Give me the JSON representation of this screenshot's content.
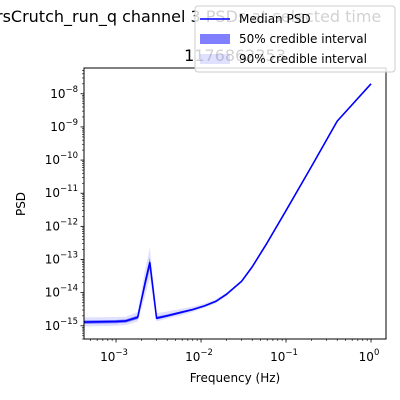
{
  "chart_data": {
    "type": "line",
    "title": "rsCrutch_run_q channel 3 PSDs at selected time",
    "subtitle": "1176862353",
    "xlabel": "Frequency (Hz)",
    "ylabel": "PSD",
    "xscale": "log",
    "yscale": "log",
    "xlim": [
      0.00042,
      1.5
    ],
    "ylim": [
      4e-16,
      6e-08
    ],
    "x_ticks": [
      {
        "value": 0.001,
        "base": "10",
        "exp": "−3"
      },
      {
        "value": 0.01,
        "base": "10",
        "exp": "−2"
      },
      {
        "value": 0.1,
        "base": "10",
        "exp": "−1"
      },
      {
        "value": 1,
        "base": "10",
        "exp": "0"
      }
    ],
    "y_ticks": [
      {
        "value": 1e-15,
        "base": "10",
        "exp": "−15"
      },
      {
        "value": 1e-14,
        "base": "10",
        "exp": "−14"
      },
      {
        "value": 1e-13,
        "base": "10",
        "exp": "−13"
      },
      {
        "value": 1e-12,
        "base": "10",
        "exp": "−12"
      },
      {
        "value": 1e-11,
        "base": "10",
        "exp": "−11"
      },
      {
        "value": 1e-10,
        "base": "10",
        "exp": "−10"
      },
      {
        "value": 1e-09,
        "base": "10",
        "exp": "−9"
      },
      {
        "value": 1e-08,
        "base": "10",
        "exp": "−8"
      }
    ],
    "grid": false,
    "legend": {
      "position": "upper-right",
      "entries": [
        {
          "label": "Median PSD",
          "kind": "line",
          "color": "#0000ff"
        },
        {
          "label": "50% credible interval",
          "kind": "band",
          "color": "#0000ff",
          "alpha": 0.5
        },
        {
          "label": "90% credible interval",
          "kind": "band",
          "color": "#0000ff",
          "alpha": 0.12
        }
      ]
    },
    "series": [
      {
        "name": "Median PSD",
        "x": [
          0.00042,
          0.001,
          0.0013,
          0.0018,
          0.0022,
          0.0025,
          0.003,
          0.004,
          0.006,
          0.008,
          0.011,
          0.015,
          0.02,
          0.03,
          0.04,
          0.06,
          0.1,
          0.2,
          0.4,
          1.0
        ],
        "y": [
          1.3e-15,
          1.35e-15,
          1.4e-15,
          1.8e-15,
          2e-14,
          8e-14,
          1.7e-15,
          2e-15,
          2.6e-15,
          3.1e-15,
          4e-15,
          5.5e-15,
          9e-15,
          2.2e-14,
          6e-14,
          3.2e-13,
          3e-12,
          6.5e-11,
          1.5e-09,
          2e-08
        ]
      },
      {
        "name": "50% credible interval",
        "x": [
          0.00042,
          0.001,
          0.0013,
          0.0018,
          0.0022,
          0.0025,
          0.003,
          0.004,
          0.006,
          0.008,
          0.011,
          0.015,
          0.02,
          0.03,
          0.04,
          0.06,
          0.1,
          0.2,
          0.4,
          1.0
        ],
        "low": [
          1.15e-15,
          1.2e-15,
          1.25e-15,
          1.6e-15,
          1.4e-14,
          5.5e-14,
          1.55e-15,
          1.85e-15,
          2.4e-15,
          2.9e-15,
          3.8e-15,
          5.2e-15,
          8.5e-15,
          2.1e-14,
          5.7e-14,
          3e-13,
          2.9e-12,
          6.3e-11,
          1.45e-09,
          1.95e-08
        ],
        "high": [
          1.45e-15,
          1.5e-15,
          1.55e-15,
          2.05e-15,
          2.7e-14,
          1.1e-13,
          1.9e-15,
          2.2e-15,
          2.8e-15,
          3.3e-15,
          4.2e-15,
          5.8e-15,
          9.5e-15,
          2.3e-14,
          6.3e-14,
          3.4e-13,
          3.1e-12,
          6.7e-11,
          1.55e-09,
          2.05e-08
        ]
      },
      {
        "name": "90% credible interval",
        "x": [
          0.00042,
          0.001,
          0.0013,
          0.0018,
          0.0022,
          0.0025,
          0.003,
          0.004,
          0.006,
          0.008,
          0.011,
          0.015,
          0.02,
          0.03,
          0.04,
          0.06,
          0.1,
          0.2,
          0.4,
          1.0
        ],
        "low": [
          9.5e-16,
          1e-15,
          1.05e-15,
          1.35e-15,
          8e-15,
          2.8e-14,
          1.35e-15,
          1.65e-15,
          2.1e-15,
          2.6e-15,
          3.5e-15,
          4.8e-15,
          8e-15,
          2e-14,
          5.4e-14,
          2.85e-13,
          2.8e-12,
          6.1e-11,
          1.4e-09,
          1.9e-08
        ],
        "high": [
          1.8e-15,
          1.85e-15,
          1.9e-15,
          2.6e-15,
          5e-14,
          2.3e-13,
          2.4e-15,
          2.7e-15,
          3.3e-15,
          3.8e-15,
          4.7e-15,
          6.4e-15,
          1.02e-14,
          2.45e-14,
          6.7e-14,
          3.6e-13,
          3.2e-12,
          6.9e-11,
          1.6e-09,
          2.1e-08
        ]
      }
    ]
  }
}
